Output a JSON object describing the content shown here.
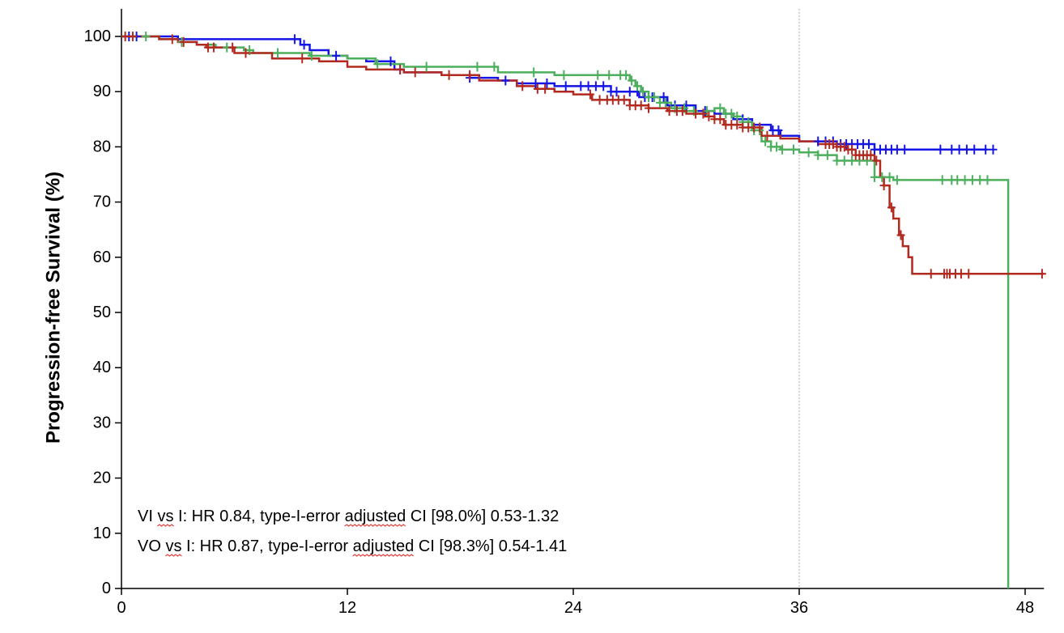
{
  "chart_data": {
    "type": "line",
    "title": "",
    "xlabel": "",
    "ylabel": "Progression-free Survival (%)",
    "xlim": [
      0,
      49
    ],
    "ylim": [
      0,
      105
    ],
    "xticks": [
      0,
      12,
      24,
      36,
      48
    ],
    "yticks": [
      0,
      10,
      20,
      30,
      40,
      50,
      60,
      70,
      80,
      90,
      100
    ],
    "reference_line_x": 36,
    "grid": false,
    "legend": "none",
    "annotations": [
      "VI vs I: HR 0.84, type-I-error adjusted CI [98.0%] 0.53-1.32",
      "VO vs I: HR 0.87, type-I-error adjusted CI [98.3%] 0.54-1.41"
    ],
    "series": [
      {
        "color": "#1515e6",
        "x": [
          0,
          0.5,
          1,
          2,
          3,
          5,
          9.5,
          10,
          11,
          12,
          13,
          14.5,
          15,
          17,
          18.5,
          20,
          21,
          23,
          24.5,
          26,
          27.5,
          29,
          30.5,
          31.5,
          32.5,
          33.5,
          34.5,
          35,
          36,
          38,
          40,
          42,
          44,
          46
        ],
        "y": [
          100,
          100,
          100,
          100,
          99.5,
          99.5,
          98.5,
          97.5,
          96.5,
          96,
          95.5,
          94,
          93.5,
          93,
          92.5,
          92,
          91.5,
          91,
          91,
          90,
          89,
          87.5,
          86.5,
          86,
          85,
          84,
          83,
          82,
          81,
          80.5,
          79.5,
          79.5,
          79.5,
          79.5
        ],
        "censor_x": [
          0.4,
          0.8,
          9.2,
          9.7,
          11.4,
          14.3,
          14.8,
          18.5,
          20.4,
          22,
          22.6,
          23.6,
          24.4,
          24.8,
          25.2,
          25.6,
          26,
          26.3,
          27,
          27.4,
          27.8,
          28.2,
          28.8,
          29.4,
          30,
          31,
          33,
          34.6,
          34.9,
          37,
          37.4,
          37.8,
          38.2,
          38.5,
          38.8,
          39.1,
          39.4,
          39.7,
          40,
          40.3,
          40.6,
          40.9,
          41.2,
          41.6,
          43.5,
          44.1,
          44.5,
          44.9,
          45.3,
          45.9,
          46.3
        ]
      },
      {
        "color": "#4caf5c",
        "x": [
          0,
          1,
          2,
          3,
          4,
          5,
          6.5,
          7,
          10,
          12,
          13.5,
          15,
          17,
          20,
          23,
          26.5,
          27,
          27.3,
          27.6,
          28,
          28.6,
          29.2,
          30,
          30.5,
          31,
          31.5,
          32,
          32.5,
          33,
          33.5,
          34,
          34.5,
          35,
          36,
          37,
          38,
          39,
          40,
          41,
          43,
          46.5,
          47,
          47.1
        ],
        "y": [
          100,
          100,
          99.5,
          99,
          98.5,
          98,
          97.5,
          97,
          96.5,
          96,
          95,
          94.5,
          94.5,
          93.5,
          93,
          93,
          92,
          91,
          90,
          89,
          88,
          87,
          86.5,
          86,
          86.5,
          87,
          86,
          85.5,
          84.5,
          83,
          81,
          80,
          79.5,
          79,
          78.5,
          77.5,
          77.5,
          74.5,
          74,
          74,
          74,
          74,
          0
        ],
        "censor_x": [
          1.3,
          3.2,
          5.6,
          6.8,
          8.3,
          10.1,
          13.6,
          16.2,
          18.9,
          19.8,
          21.9,
          23.5,
          25.3,
          25.9,
          26.5,
          26.8,
          27.1,
          27.4,
          27.7,
          28,
          28.3,
          28.6,
          28.9,
          29.4,
          29.9,
          30.4,
          31.1,
          31.8,
          32.1,
          32.4,
          32.7,
          33,
          33.3,
          33.6,
          33.9,
          34.2,
          34.5,
          34.8,
          35.1,
          35.7,
          36.5,
          37,
          37.5,
          38,
          38.4,
          38.8,
          39.2,
          39.6,
          40,
          40.4,
          40.8,
          41.2,
          43.6,
          44.1,
          44.4,
          44.8,
          45.2,
          45.6,
          46
        ]
      },
      {
        "color": "#b22a1f",
        "x": [
          0,
          1,
          2,
          3,
          4,
          4.5,
          6,
          8,
          10.5,
          12,
          13,
          15,
          17,
          19,
          21,
          22,
          23,
          24,
          25,
          27,
          28,
          29,
          30,
          31,
          31.5,
          32,
          33,
          34,
          35,
          36,
          37,
          38,
          38.5,
          39,
          40,
          40.3,
          40.5,
          40.8,
          41,
          41.3,
          41.5,
          41.8,
          42,
          49
        ],
        "y": [
          100,
          100,
          99.5,
          99,
          98.5,
          98,
          97,
          96,
          95.5,
          94.5,
          94,
          93.5,
          93,
          92,
          91,
          90.5,
          90,
          89.5,
          88.5,
          87.5,
          87,
          86.5,
          86,
          85.5,
          85,
          84,
          83.5,
          82,
          81.5,
          81,
          80.5,
          80,
          79.5,
          78.5,
          77.5,
          74.5,
          73,
          69,
          67,
          64,
          62,
          60,
          57,
          57
        ],
        "censor_x": [
          0.2,
          0.6,
          2.7,
          3.3,
          4.6,
          4.9,
          5.9,
          6.6,
          9.6,
          14.8,
          15.6,
          17.4,
          18.5,
          21.3,
          22.1,
          22.5,
          24.9,
          25.4,
          25.8,
          26.1,
          26.4,
          26.7,
          27,
          27.3,
          27.6,
          28,
          29.1,
          29.5,
          29.8,
          30.5,
          30.9,
          31.2,
          31.5,
          31.8,
          32.1,
          32.4,
          32.7,
          33,
          33.3,
          33.6,
          33.9,
          34.3,
          37.4,
          37.6,
          37.8,
          38,
          38.2,
          38.4,
          38.6,
          38.8,
          39,
          39.2,
          39.4,
          39.6,
          39.8,
          40.1,
          40.5,
          40.9,
          41.4,
          43,
          43.7,
          43.85,
          44,
          44.3,
          44.6,
          45,
          48.9
        ]
      }
    ]
  }
}
